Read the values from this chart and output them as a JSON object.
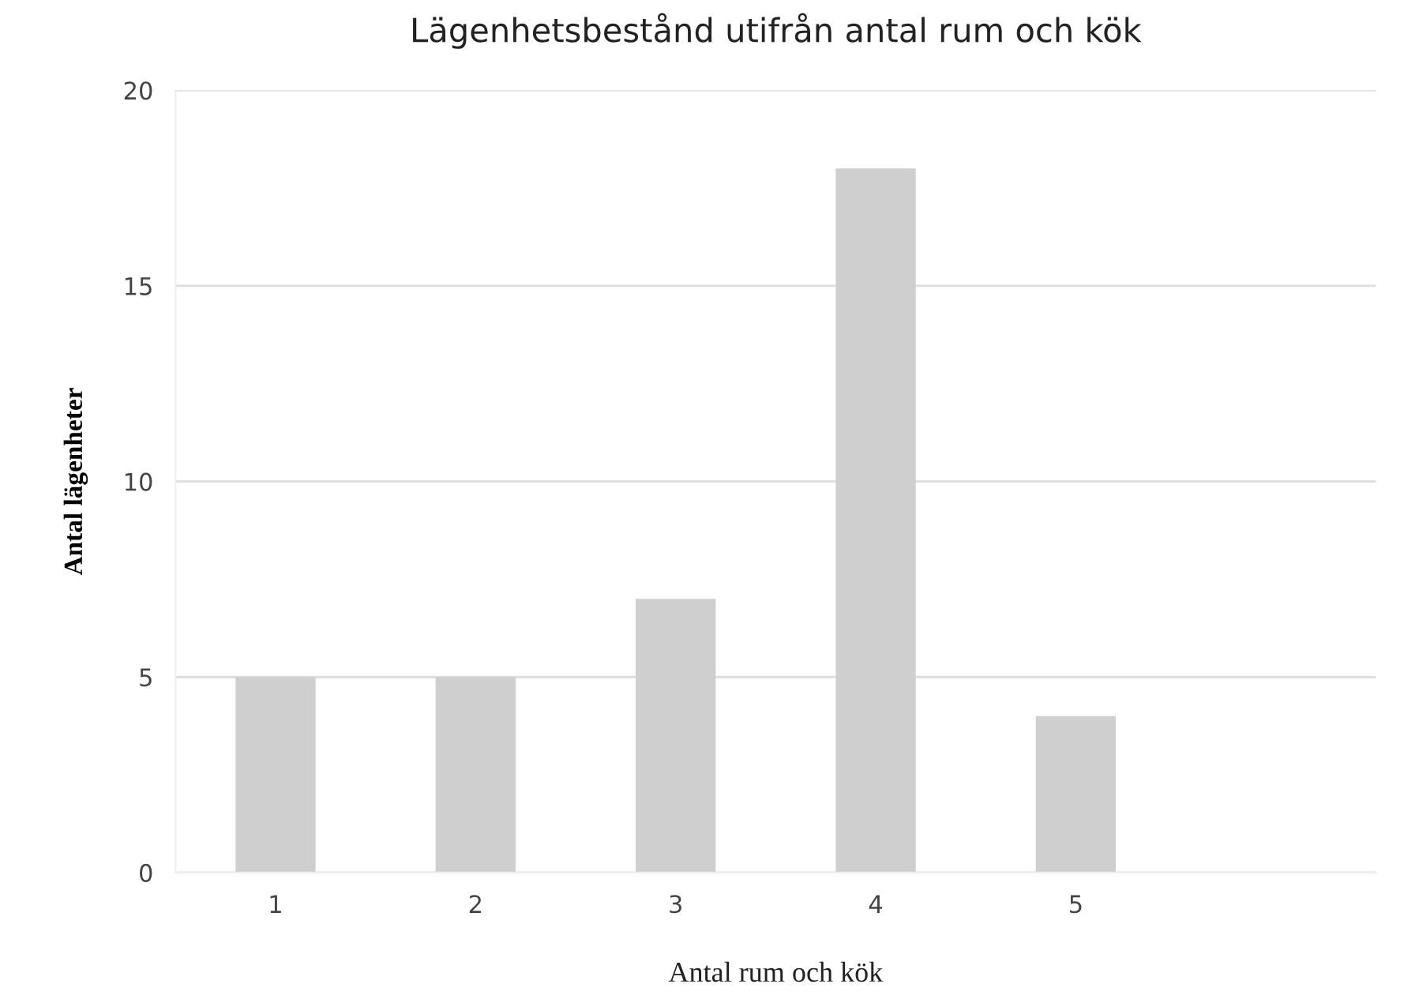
{
  "chart_data": {
    "type": "bar",
    "title": "Lägenhetsbestånd utifrån antal rum och kök",
    "xlabel": "Antal rum och kök",
    "ylabel": "Antal lägenheter",
    "categories": [
      "1",
      "2",
      "3",
      "4",
      "5",
      null
    ],
    "values": [
      5,
      5,
      7,
      18,
      4,
      null
    ],
    "color": "#cfcfcf",
    "ylim": [
      0,
      20
    ],
    "yticks": [
      0,
      5,
      10,
      15,
      20
    ],
    "grid": "y"
  }
}
